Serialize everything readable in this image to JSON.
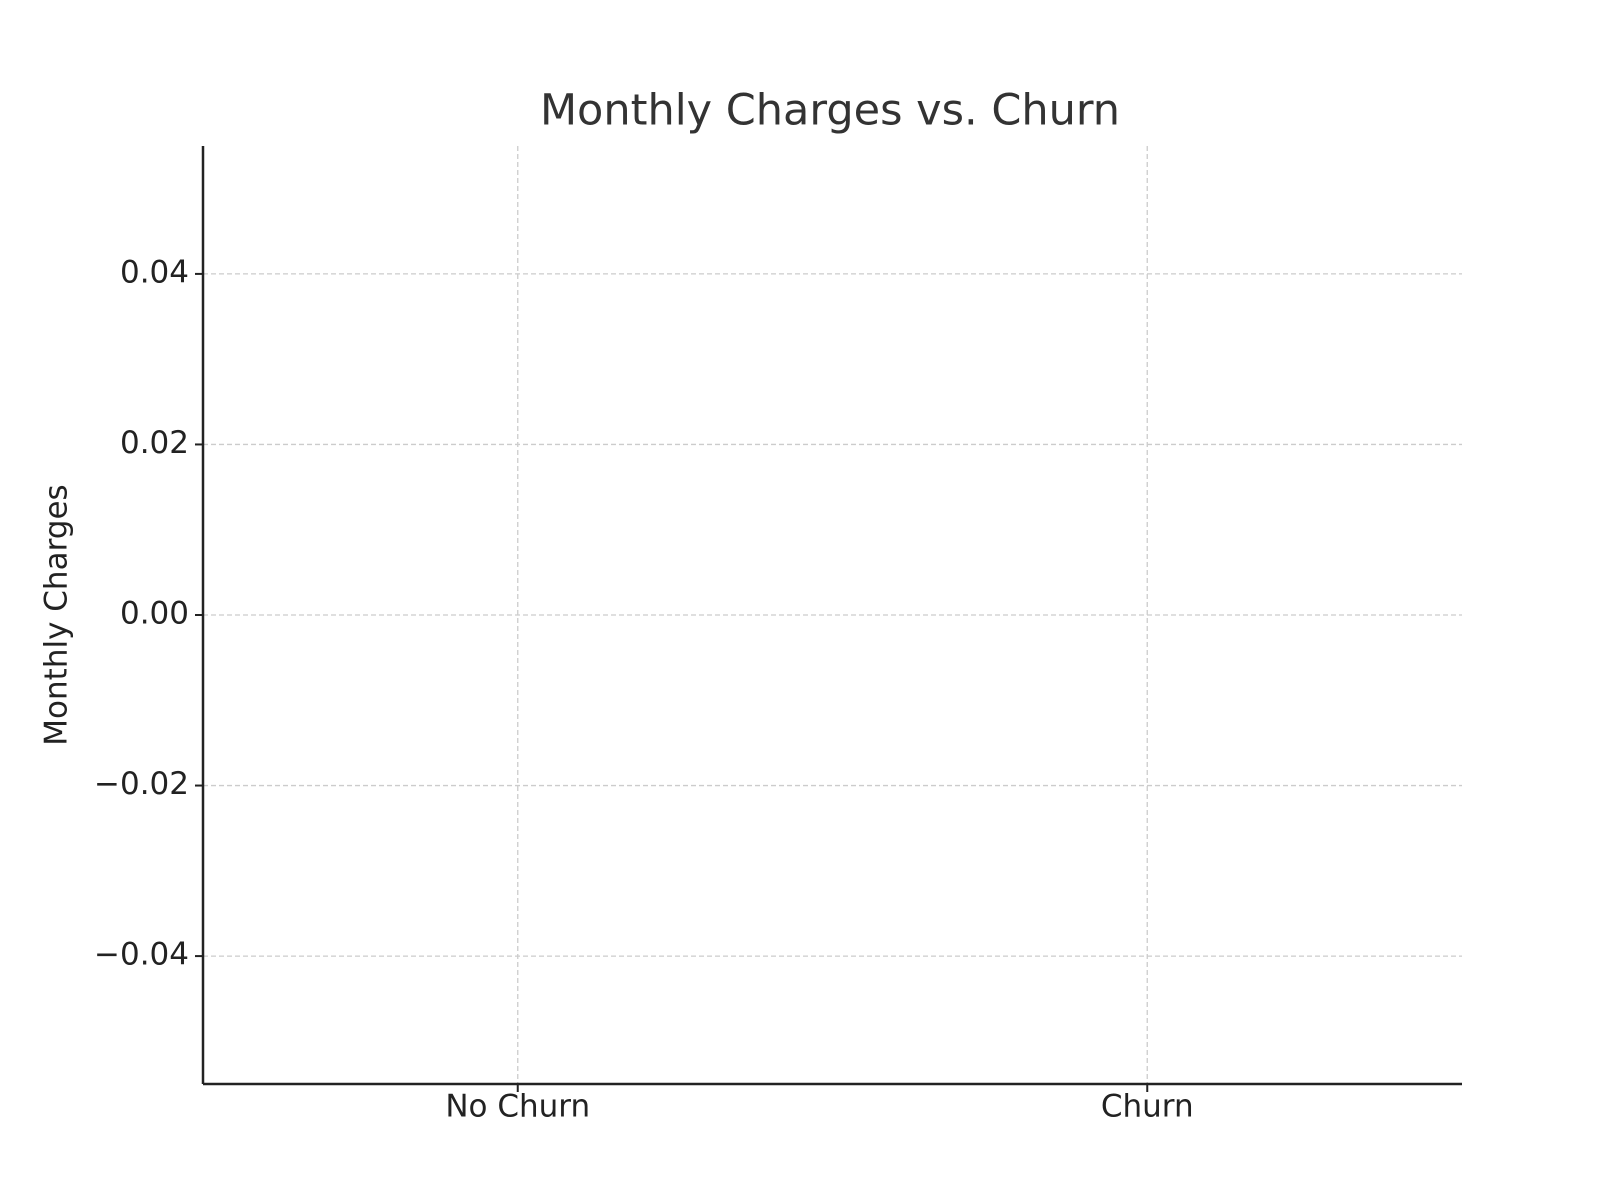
{
  "chart_data": {
    "type": "box",
    "title": "Monthly Charges vs. Churn",
    "y_label": "Monthly Charges",
    "categories": [
      "No Churn",
      "Churn"
    ],
    "ylim": [
      -0.055,
      0.055
    ],
    "yticks": [
      {
        "value": -0.04,
        "label": "−0.04"
      },
      {
        "value": -0.02,
        "label": "−0.02"
      },
      {
        "value": 0,
        "label": "0.00"
      },
      0.02,
      0.04
    ],
    "grid": true
  }
}
